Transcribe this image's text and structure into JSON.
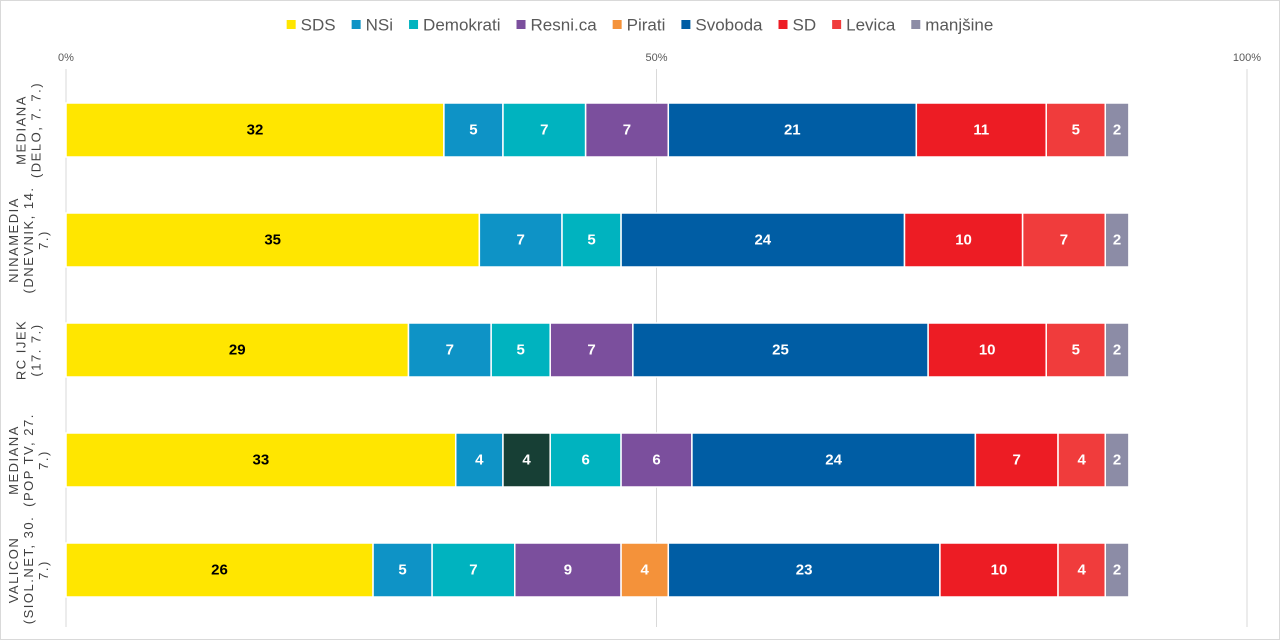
{
  "chart_data": {
    "type": "bar",
    "orientation": "horizontal",
    "stacked": true,
    "xlim": [
      0,
      100
    ],
    "x_ticks": [
      "0%",
      "50%",
      "100%"
    ],
    "grid": true,
    "legend_position": "top",
    "categories": [
      [
        "MEDIANA",
        "(DELO, 7. 7.)"
      ],
      [
        "NINAMEDIA",
        "(DNEVNIK, 14.",
        "7.)"
      ],
      [
        "RC IJEK",
        "(17. 7.)"
      ],
      [
        "MEDIANA",
        "(POP TV, 27.",
        "7.)"
      ],
      [
        "VALICON",
        "(SIOL.NET, 30.",
        "7.)"
      ]
    ],
    "legend": [
      {
        "name": "SDS",
        "color": "#FFE600"
      },
      {
        "name": "NSi",
        "color": "#0E93C6"
      },
      {
        "name": "Demokrati",
        "color": "#00B3BF"
      },
      {
        "name": "Resni.ca",
        "color": "#7B4F9D"
      },
      {
        "name": "Pirati",
        "color": "#F4923A"
      },
      {
        "name": "Svoboda",
        "color": "#005DA4"
      },
      {
        "name": "SD",
        "color": "#ED1C24"
      },
      {
        "name": "Levica",
        "color": "#F03C3C"
      },
      {
        "name": "manjšine",
        "color": "#8C8CA6"
      }
    ],
    "rows": [
      [
        {
          "party": "SDS",
          "value": 32,
          "color": "#FFE600",
          "label_color": "#000000"
        },
        {
          "party": "NSi",
          "value": 5,
          "color": "#0E93C6",
          "label_color": "#ffffff"
        },
        {
          "party": "Demokrati",
          "value": 7,
          "color": "#00B3BF",
          "label_color": "#ffffff"
        },
        {
          "party": "Resni.ca",
          "value": 7,
          "color": "#7B4F9D",
          "label_color": "#ffffff"
        },
        {
          "party": "Svoboda",
          "value": 21,
          "color": "#005DA4",
          "label_color": "#ffffff"
        },
        {
          "party": "SD",
          "value": 11,
          "color": "#ED1C24",
          "label_color": "#ffffff"
        },
        {
          "party": "Levica",
          "value": 5,
          "color": "#F03C3C",
          "label_color": "#ffffff"
        },
        {
          "party": "manjšine",
          "value": 2,
          "color": "#8C8CA6",
          "label_color": "#ffffff"
        }
      ],
      [
        {
          "party": "SDS",
          "value": 35,
          "color": "#FFE600",
          "label_color": "#000000"
        },
        {
          "party": "NSi",
          "value": 7,
          "color": "#0E93C6",
          "label_color": "#ffffff"
        },
        {
          "party": "Demokrati",
          "value": 5,
          "color": "#00B3BF",
          "label_color": "#ffffff"
        },
        {
          "party": "Svoboda",
          "value": 24,
          "color": "#005DA4",
          "label_color": "#ffffff"
        },
        {
          "party": "SD",
          "value": 10,
          "color": "#ED1C24",
          "label_color": "#ffffff"
        },
        {
          "party": "Levica",
          "value": 7,
          "color": "#F03C3C",
          "label_color": "#ffffff"
        },
        {
          "party": "manjšine",
          "value": 2,
          "color": "#8C8CA6",
          "label_color": "#ffffff"
        }
      ],
      [
        {
          "party": "SDS",
          "value": 29,
          "color": "#FFE600",
          "label_color": "#000000"
        },
        {
          "party": "NSi",
          "value": 7,
          "color": "#0E93C6",
          "label_color": "#ffffff"
        },
        {
          "party": "Demokrati",
          "value": 5,
          "color": "#00B3BF",
          "label_color": "#ffffff"
        },
        {
          "party": "Resni.ca",
          "value": 7,
          "color": "#7B4F9D",
          "label_color": "#ffffff"
        },
        {
          "party": "Svoboda",
          "value": 25,
          "color": "#005DA4",
          "label_color": "#ffffff"
        },
        {
          "party": "SD",
          "value": 10,
          "color": "#ED1C24",
          "label_color": "#ffffff"
        },
        {
          "party": "Levica",
          "value": 5,
          "color": "#F03C3C",
          "label_color": "#ffffff"
        },
        {
          "party": "manjšine",
          "value": 2,
          "color": "#8C8CA6",
          "label_color": "#ffffff"
        }
      ],
      [
        {
          "party": "SDS",
          "value": 33,
          "color": "#FFE600",
          "label_color": "#000000"
        },
        {
          "party": "NSi",
          "value": 4,
          "color": "#0E93C6",
          "label_color": "#ffffff"
        },
        {
          "party": "",
          "value": 4,
          "color": "#173F35",
          "label_color": "#ffffff"
        },
        {
          "party": "Demokrati",
          "value": 6,
          "color": "#00B3BF",
          "label_color": "#ffffff"
        },
        {
          "party": "Resni.ca",
          "value": 6,
          "color": "#7B4F9D",
          "label_color": "#ffffff"
        },
        {
          "party": "Svoboda",
          "value": 24,
          "color": "#005DA4",
          "label_color": "#ffffff"
        },
        {
          "party": "SD",
          "value": 7,
          "color": "#ED1C24",
          "label_color": "#ffffff"
        },
        {
          "party": "Levica",
          "value": 4,
          "color": "#F03C3C",
          "label_color": "#ffffff"
        },
        {
          "party": "manjšine",
          "value": 2,
          "color": "#8C8CA6",
          "label_color": "#ffffff"
        }
      ],
      [
        {
          "party": "SDS",
          "value": 26,
          "color": "#FFE600",
          "label_color": "#000000"
        },
        {
          "party": "NSi",
          "value": 5,
          "color": "#0E93C6",
          "label_color": "#ffffff"
        },
        {
          "party": "Demokrati",
          "value": 7,
          "color": "#00B3BF",
          "label_color": "#ffffff"
        },
        {
          "party": "Resni.ca",
          "value": 9,
          "color": "#7B4F9D",
          "label_color": "#ffffff"
        },
        {
          "party": "Pirati",
          "value": 4,
          "color": "#F4923A",
          "label_color": "#ffffff"
        },
        {
          "party": "Svoboda",
          "value": 23,
          "color": "#005DA4",
          "label_color": "#ffffff"
        },
        {
          "party": "SD",
          "value": 10,
          "color": "#ED1C24",
          "label_color": "#ffffff"
        },
        {
          "party": "Levica",
          "value": 4,
          "color": "#F03C3C",
          "label_color": "#ffffff"
        },
        {
          "party": "manjšine",
          "value": 2,
          "color": "#8C8CA6",
          "label_color": "#ffffff"
        }
      ]
    ]
  }
}
